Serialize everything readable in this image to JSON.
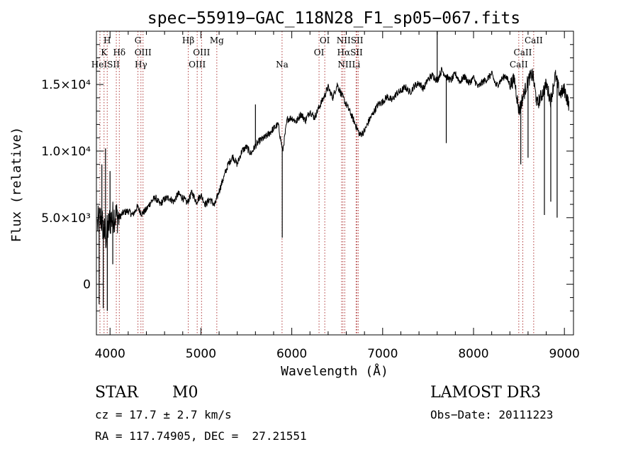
{
  "chart_data": {
    "type": "line",
    "title": "spec−55919−GAC_118N28_F1_sp05−067.fits",
    "xlabel": "Wavelength (Å)",
    "ylabel": "Flux (relative)",
    "xlim": [
      3850,
      9100
    ],
    "ylim": [
      -3800,
      19000
    ],
    "x_ticks": [
      {
        "value": 4000,
        "label": "4000"
      },
      {
        "value": 5000,
        "label": "5000"
      },
      {
        "value": 6000,
        "label": "6000"
      },
      {
        "value": 7000,
        "label": "7000"
      },
      {
        "value": 8000,
        "label": "8000"
      },
      {
        "value": 9000,
        "label": "9000"
      }
    ],
    "y_ticks": [
      {
        "value": 0,
        "label": "0"
      },
      {
        "value": 5000,
        "label": "5.0×10³"
      },
      {
        "value": 10000,
        "label": "1.0×10⁴"
      },
      {
        "value": 15000,
        "label": "1.5×10⁴"
      }
    ],
    "grid": false,
    "series": [
      {
        "color": "#000000",
        "x": [
          3860,
          3900,
          3950,
          4000,
          4050,
          4100,
          4150,
          4200,
          4250,
          4300,
          4350,
          4400,
          4450,
          4500,
          4550,
          4600,
          4650,
          4700,
          4750,
          4800,
          4850,
          4900,
          4950,
          5000,
          5050,
          5100,
          5150,
          5200,
          5250,
          5300,
          5350,
          5400,
          5450,
          5500,
          5550,
          5600,
          5650,
          5700,
          5750,
          5800,
          5850,
          5900,
          5950,
          6000,
          6050,
          6100,
          6150,
          6200,
          6250,
          6300,
          6350,
          6400,
          6450,
          6500,
          6550,
          6600,
          6650,
          6700,
          6750,
          6800,
          6850,
          6900,
          6950,
          7000,
          7050,
          7100,
          7150,
          7200,
          7250,
          7300,
          7350,
          7400,
          7450,
          7500,
          7550,
          7600,
          7650,
          7700,
          7750,
          7800,
          7850,
          7900,
          7950,
          8000,
          8050,
          8100,
          8150,
          8200,
          8250,
          8300,
          8350,
          8400,
          8450,
          8500,
          8550,
          8600,
          8650,
          8700,
          8750,
          8800,
          8850,
          8900,
          8950,
          9000,
          9050
        ],
        "y": [
          4500,
          5000,
          3500,
          4800,
          5200,
          5000,
          5400,
          5500,
          5200,
          5800,
          5300,
          5600,
          6200,
          6500,
          6000,
          6400,
          6500,
          6200,
          6800,
          6500,
          6100,
          6900,
          6200,
          6700,
          6000,
          6400,
          5900,
          7000,
          8000,
          9000,
          9600,
          9000,
          10000,
          10300,
          9800,
          10400,
          10800,
          11000,
          11300,
          11700,
          12000,
          10000,
          12400,
          12500,
          12200,
          12800,
          12300,
          13000,
          12500,
          13300,
          14000,
          14800,
          14000,
          15000,
          14200,
          13500,
          12800,
          12000,
          11200,
          11500,
          12300,
          12900,
          13500,
          13700,
          14100,
          13800,
          14300,
          14500,
          14800,
          14400,
          14900,
          15100,
          14700,
          15400,
          15700,
          15300,
          16100,
          15600,
          15300,
          15800,
          15200,
          15600,
          15100,
          15500,
          14800,
          15200,
          15400,
          15800,
          14900,
          15300,
          15700,
          15000,
          15400,
          13000,
          14200,
          15300,
          15800,
          13500,
          14200,
          15000,
          13800,
          15700,
          14300,
          14600,
          13500
        ]
      }
    ],
    "spikes": [
      {
        "x": 3880,
        "y": -1500
      },
      {
        "x": 3910,
        "y": 9000
      },
      {
        "x": 3925,
        "y": -1800
      },
      {
        "x": 3950,
        "y": 10200
      },
      {
        "x": 3970,
        "y": -2000
      },
      {
        "x": 4000,
        "y": 8500
      },
      {
        "x": 4030,
        "y": 1500
      },
      {
        "x": 5600,
        "y": 13500
      },
      {
        "x": 5895,
        "y": 3500
      },
      {
        "x": 7600,
        "y": 19000
      },
      {
        "x": 7700,
        "y": 10600
      },
      {
        "x": 8520,
        "y": 9000
      },
      {
        "x": 8600,
        "y": 9500
      },
      {
        "x": 8780,
        "y": 5200
      },
      {
        "x": 8850,
        "y": 6200
      },
      {
        "x": 8920,
        "y": 5000
      }
    ],
    "line_labels": {
      "row1": [
        {
          "text": "H",
          "x": 3969
        },
        {
          "text": "G",
          "x": 4307
        },
        {
          "text": "Hβ",
          "x": 4861
        },
        {
          "text": "Mg",
          "x": 5175
        },
        {
          "text": "OI",
          "x": 6363
        },
        {
          "text": "NIISII",
          "x": 6640
        },
        {
          "text": "CaII",
          "x": 8662
        }
      ],
      "row2": [
        {
          "text": "K",
          "x": 3934
        },
        {
          "text": "Hδ",
          "x": 4102
        },
        {
          "text": "OIII",
          "x": 4363
        },
        {
          "text": "OIII",
          "x": 5007
        },
        {
          "text": "OI",
          "x": 6300
        },
        {
          "text": "HαSII",
          "x": 6640
        },
        {
          "text": "CaII",
          "x": 8542
        }
      ],
      "row3": [
        {
          "text": "HeISII",
          "x": 3950
        },
        {
          "text": "Hγ",
          "x": 4340
        },
        {
          "text": "OIII",
          "x": 4959
        },
        {
          "text": "Na",
          "x": 5893
        },
        {
          "text": "NII",
          "x": 6583
        },
        {
          "text": "Li",
          "x": 6708
        },
        {
          "text": "CaII",
          "x": 8498
        }
      ]
    },
    "line_markers": [
      3889,
      3934,
      3969,
      4069,
      4102,
      4307,
      4340,
      4363,
      4861,
      4959,
      5007,
      5175,
      5893,
      6300,
      6363,
      6548,
      6563,
      6583,
      6708,
      6716,
      6731,
      8498,
      8542,
      8662
    ],
    "marker_color": "#b03a3a"
  },
  "footer": {
    "object_class": "STAR",
    "subclass": "M0",
    "survey": "LAMOST DR3",
    "cz": "cz = 17.7 ± 2.7 km/s",
    "obs_date": "Obs−Date: 20111223",
    "coords": "RA = 117.74905, DEC =  27.21551"
  }
}
